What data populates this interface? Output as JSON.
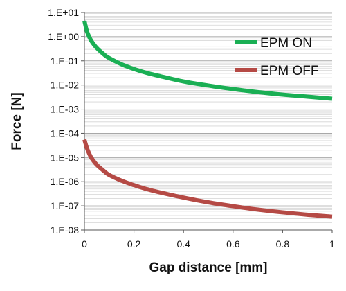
{
  "chart_data": {
    "type": "line",
    "title": "",
    "xlabel": "Gap distance [mm]",
    "ylabel": "Force [N]",
    "xlim": [
      0,
      1
    ],
    "ylim": [
      1e-08,
      10
    ],
    "yscale": "log",
    "grid": true,
    "legend_position": "top-right",
    "x_ticks": [
      {
        "value": 0,
        "label": "0"
      },
      {
        "value": 0.2,
        "label": "0.2"
      },
      {
        "value": 0.4,
        "label": "0.4"
      },
      {
        "value": 0.6,
        "label": "0.6"
      },
      {
        "value": 0.8,
        "label": "0.8"
      },
      {
        "value": 1,
        "label": "1"
      }
    ],
    "y_ticks": [
      {
        "value": 10,
        "label": "1.E+01"
      },
      {
        "value": 1,
        "label": "1.E+00"
      },
      {
        "value": 0.1,
        "label": "1.E-01"
      },
      {
        "value": 0.01,
        "label": "1.E-02"
      },
      {
        "value": 0.001,
        "label": "1.E-03"
      },
      {
        "value": 0.0001,
        "label": "1.E-04"
      },
      {
        "value": 1e-05,
        "label": "1.E-05"
      },
      {
        "value": 1e-06,
        "label": "1.E-06"
      },
      {
        "value": 1e-07,
        "label": "1.E-07"
      },
      {
        "value": 1e-08,
        "label": "1.E-08"
      }
    ],
    "series": [
      {
        "name": "EPM ON",
        "color": "#1aaf54",
        "x": [
          0,
          0.01,
          0.02,
          0.03,
          0.05,
          0.08,
          0.1,
          0.15,
          0.2,
          0.25,
          0.3,
          0.4,
          0.5,
          0.6,
          0.7,
          0.8,
          0.9,
          1.0
        ],
        "y": [
          4.5,
          1.7,
          0.95,
          0.62,
          0.34,
          0.18,
          0.13,
          0.072,
          0.046,
          0.032,
          0.024,
          0.014,
          0.0095,
          0.0068,
          0.0051,
          0.004,
          0.0033,
          0.0027
        ]
      },
      {
        "name": "EPM OFF",
        "color": "#b54a45",
        "x": [
          0,
          0.01,
          0.02,
          0.03,
          0.05,
          0.08,
          0.1,
          0.15,
          0.2,
          0.25,
          0.3,
          0.4,
          0.5,
          0.6,
          0.7,
          0.8,
          0.9,
          1.0
        ],
        "y": [
          5.5e-05,
          2.5e-05,
          1.4e-05,
          9.1e-06,
          5e-06,
          2.7e-06,
          1.9e-06,
          1.1e-06,
          7.2e-07,
          5e-07,
          3.7e-07,
          2.2e-07,
          1.4e-07,
          9.7e-08,
          7e-08,
          5.4e-08,
          4.3e-08,
          3.6e-08
        ]
      }
    ]
  }
}
